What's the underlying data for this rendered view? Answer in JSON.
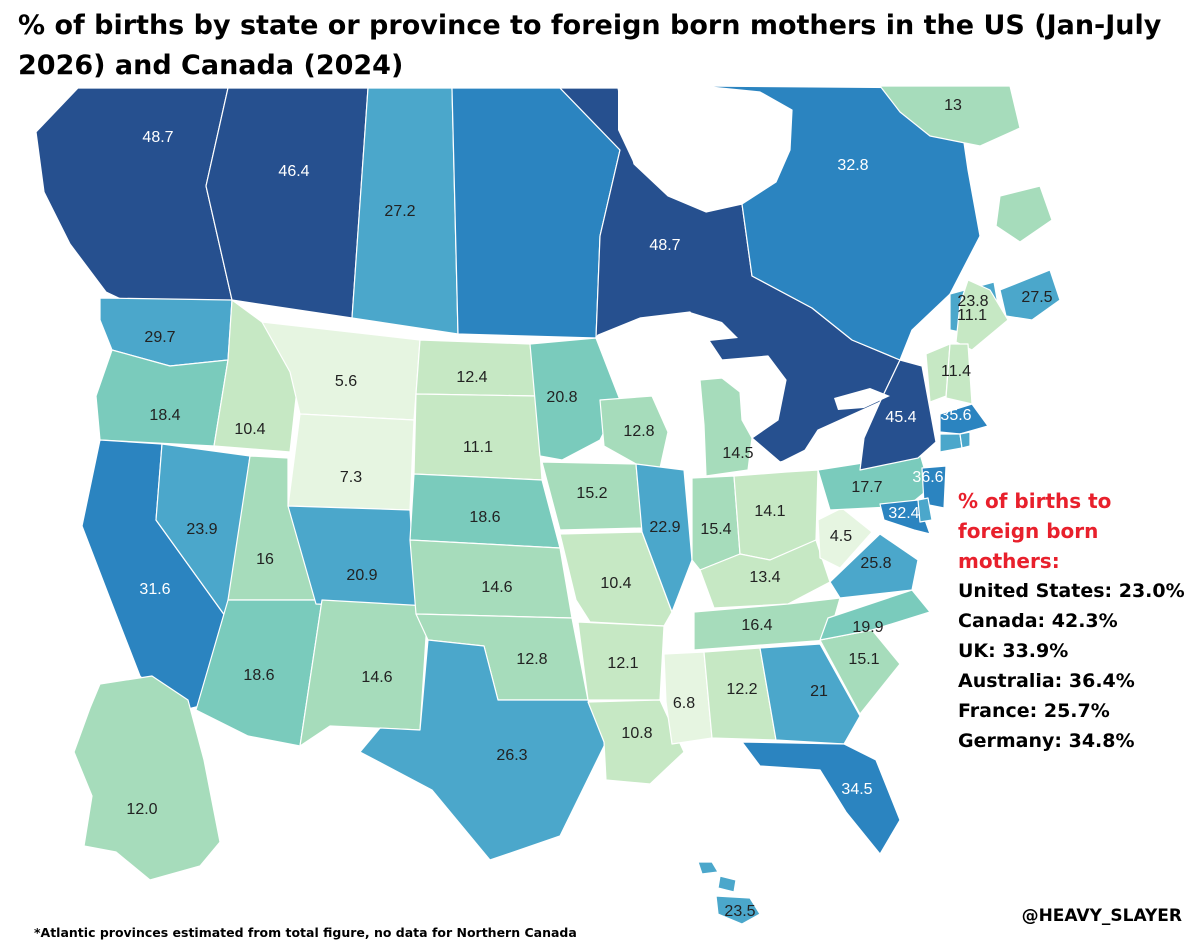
{
  "title": "% of births by state or province to foreign born mothers in the US (Jan-July 2026) and Canada (2024)",
  "legend": {
    "title": "% of births to foreign born mothers:",
    "items": [
      {
        "label": "United States: 23.0%"
      },
      {
        "label": "Canada: 42.3%"
      },
      {
        "label": "UK: 33.9%"
      },
      {
        "label": "Australia: 36.4%"
      },
      {
        "label": "France: 25.7%"
      },
      {
        "label": "Germany: 34.8%"
      }
    ]
  },
  "credit": "@HEAVY_SLAYER",
  "footnote": "*Atlantic provinces estimated from total figure, no data for Northern Canada",
  "colors": {
    "c1": "#e6f5e1",
    "c2": "#c6e8c4",
    "c3": "#a6dcbb",
    "c4": "#7acbbc",
    "c5": "#4ba7cb",
    "c6": "#2b84c0",
    "c7": "#26508f",
    "outside": "#a6dcbb",
    "legend_title": "#e8202c"
  },
  "regions": [
    {
      "name": "British Columbia",
      "value": "48.7",
      "color": "c7"
    },
    {
      "name": "Alberta",
      "value": "46.4",
      "color": "c7"
    },
    {
      "name": "Saskatchewan",
      "value": "27.2",
      "color": "c5"
    },
    {
      "name": "Manitoba",
      "value": "",
      "color": "c6"
    },
    {
      "name": "Ontario",
      "value": "48.7",
      "color": "c7"
    },
    {
      "name": "Quebec",
      "value": "32.8",
      "color": "c6"
    },
    {
      "name": "Newfoundland and Labrador",
      "value": "13",
      "color": "c3"
    },
    {
      "name": "New Brunswick",
      "value": "23.8",
      "color": "c5"
    },
    {
      "name": "Nova Scotia",
      "value": "27.5",
      "color": "c5"
    },
    {
      "name": "Washington",
      "value": "29.7",
      "color": "c5"
    },
    {
      "name": "Oregon",
      "value": "18.4",
      "color": "c4"
    },
    {
      "name": "California",
      "value": "31.6",
      "color": "c6"
    },
    {
      "name": "Idaho",
      "value": "10.4",
      "color": "c2"
    },
    {
      "name": "Nevada",
      "value": "23.9",
      "color": "c5"
    },
    {
      "name": "Montana",
      "value": "5.6",
      "color": "c1"
    },
    {
      "name": "Wyoming",
      "value": "7.3",
      "color": "c1"
    },
    {
      "name": "Utah",
      "value": "16",
      "color": "c3"
    },
    {
      "name": "Arizona",
      "value": "18.6",
      "color": "c4"
    },
    {
      "name": "Colorado",
      "value": "20.9",
      "color": "c5"
    },
    {
      "name": "New Mexico",
      "value": "14.6",
      "color": "c3"
    },
    {
      "name": "North Dakota",
      "value": "12.4",
      "color": "c2"
    },
    {
      "name": "South Dakota",
      "value": "11.1",
      "color": "c2"
    },
    {
      "name": "Nebraska",
      "value": "18.6",
      "color": "c4"
    },
    {
      "name": "Kansas",
      "value": "14.6",
      "color": "c3"
    },
    {
      "name": "Oklahoma",
      "value": "12.8",
      "color": "c3"
    },
    {
      "name": "Texas",
      "value": "26.3",
      "color": "c5"
    },
    {
      "name": "Minnesota",
      "value": "20.8",
      "color": "c4"
    },
    {
      "name": "Iowa",
      "value": "15.2",
      "color": "c3"
    },
    {
      "name": "Missouri",
      "value": "10.4",
      "color": "c2"
    },
    {
      "name": "Arkansas",
      "value": "12.1",
      "color": "c2"
    },
    {
      "name": "Louisiana",
      "value": "10.8",
      "color": "c2"
    },
    {
      "name": "Wisconsin",
      "value": "12.8",
      "color": "c3"
    },
    {
      "name": "Illinois",
      "value": "22.9",
      "color": "c5"
    },
    {
      "name": "Michigan",
      "value": "14.5",
      "color": "c3"
    },
    {
      "name": "Indiana",
      "value": "15.4",
      "color": "c3"
    },
    {
      "name": "Ohio",
      "value": "14.1",
      "color": "c2"
    },
    {
      "name": "Kentucky",
      "value": "13.4",
      "color": "c2"
    },
    {
      "name": "Tennessee",
      "value": "16.4",
      "color": "c3"
    },
    {
      "name": "Mississippi",
      "value": "6.8",
      "color": "c1"
    },
    {
      "name": "Alabama",
      "value": "12.2",
      "color": "c2"
    },
    {
      "name": "Georgia",
      "value": "21",
      "color": "c5"
    },
    {
      "name": "Florida",
      "value": "34.5",
      "color": "c6"
    },
    {
      "name": "South Carolina",
      "value": "15.1",
      "color": "c3"
    },
    {
      "name": "North Carolina",
      "value": "19.9",
      "color": "c4"
    },
    {
      "name": "Virginia",
      "value": "25.8",
      "color": "c5"
    },
    {
      "name": "West Virginia",
      "value": "4.5",
      "color": "c1"
    },
    {
      "name": "Pennsylvania",
      "value": "17.7",
      "color": "c4"
    },
    {
      "name": "New York",
      "value": "45.4",
      "color": "c7"
    },
    {
      "name": "New Jersey",
      "value": "36.6",
      "color": "c6"
    },
    {
      "name": "Maryland",
      "value": "32.4",
      "color": "c6"
    },
    {
      "name": "Massachusetts",
      "value": "35.6",
      "color": "c6"
    },
    {
      "name": "Maine",
      "value": "11.1",
      "color": "c2"
    },
    {
      "name": "Vermont",
      "value": "",
      "color": "c2"
    },
    {
      "name": "New Hampshire",
      "value": "11.4",
      "color": "c2"
    },
    {
      "name": "Connecticut",
      "value": "",
      "color": "c5"
    },
    {
      "name": "Rhode Island",
      "value": "",
      "color": "c5"
    },
    {
      "name": "Delaware",
      "value": "",
      "color": "c5"
    },
    {
      "name": "Alaska",
      "value": "12.0",
      "color": "c3"
    },
    {
      "name": "Hawaii",
      "value": "23.5",
      "color": "c5"
    }
  ]
}
